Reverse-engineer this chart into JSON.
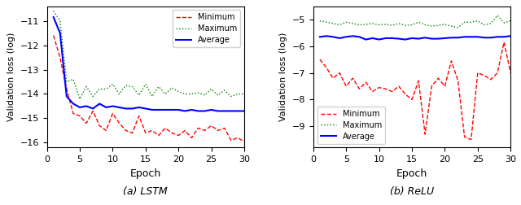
{
  "lstm": {
    "epochs": [
      1,
      2,
      3,
      4,
      5,
      6,
      7,
      8,
      9,
      10,
      11,
      12,
      13,
      14,
      15,
      16,
      17,
      18,
      19,
      20,
      21,
      22,
      23,
      24,
      25,
      26,
      27,
      28,
      29,
      30
    ],
    "minimum": [
      -11.6,
      -12.5,
      -13.8,
      -14.8,
      -14.9,
      -15.2,
      -14.7,
      -15.3,
      -15.5,
      -14.8,
      -15.2,
      -15.5,
      -15.6,
      -14.9,
      -15.6,
      -15.5,
      -15.7,
      -15.4,
      -15.6,
      -15.7,
      -15.5,
      -15.8,
      -15.4,
      -15.5,
      -15.3,
      -15.5,
      -15.4,
      -15.9,
      -15.8,
      -15.95
    ],
    "maximum": [
      -10.6,
      -11.0,
      -13.5,
      -13.4,
      -14.2,
      -13.7,
      -14.1,
      -13.8,
      -13.8,
      -13.6,
      -14.0,
      -13.65,
      -13.7,
      -14.05,
      -13.6,
      -14.1,
      -13.7,
      -14.0,
      -13.75,
      -13.9,
      -14.0,
      -14.0,
      -13.95,
      -14.05,
      -13.8,
      -14.05,
      -13.85,
      -14.1,
      -14.0,
      -14.0
    ],
    "average": [
      -10.85,
      -11.5,
      -14.1,
      -14.4,
      -14.55,
      -14.5,
      -14.6,
      -14.4,
      -14.55,
      -14.5,
      -14.55,
      -14.6,
      -14.6,
      -14.55,
      -14.6,
      -14.65,
      -14.65,
      -14.65,
      -14.65,
      -14.65,
      -14.7,
      -14.65,
      -14.7,
      -14.7,
      -14.65,
      -14.7,
      -14.7,
      -14.7,
      -14.7,
      -14.7
    ],
    "ylim": [
      -16.2,
      -10.4
    ],
    "yticks": [
      -16,
      -15,
      -14,
      -13,
      -12,
      -11
    ],
    "xlabel": "Epoch",
    "ylabel": "Validation loss (log)",
    "caption": "(a) LSTM"
  },
  "relu": {
    "epochs": [
      1,
      2,
      3,
      4,
      5,
      6,
      7,
      8,
      9,
      10,
      11,
      12,
      13,
      14,
      15,
      16,
      17,
      18,
      19,
      20,
      21,
      22,
      23,
      24,
      25,
      26,
      27,
      28,
      29,
      30
    ],
    "minimum": [
      -6.5,
      -6.8,
      -7.2,
      -7.0,
      -7.5,
      -7.2,
      -7.6,
      -7.35,
      -7.7,
      -7.55,
      -7.6,
      -7.7,
      -7.5,
      -7.8,
      -8.0,
      -7.3,
      -9.3,
      -7.5,
      -7.2,
      -7.5,
      -6.55,
      -7.3,
      -9.4,
      -9.5,
      -7.0,
      -7.1,
      -7.25,
      -7.0,
      -5.85,
      -7.0
    ],
    "maximum": [
      -5.05,
      -5.1,
      -5.15,
      -5.2,
      -5.1,
      -5.15,
      -5.2,
      -5.18,
      -5.15,
      -5.2,
      -5.18,
      -5.22,
      -5.15,
      -5.22,
      -5.2,
      -5.1,
      -5.2,
      -5.25,
      -5.22,
      -5.18,
      -5.25,
      -5.3,
      -5.1,
      -5.1,
      -5.05,
      -5.2,
      -5.15,
      -4.85,
      -5.12,
      -5.05
    ],
    "average": [
      -5.65,
      -5.62,
      -5.65,
      -5.7,
      -5.65,
      -5.62,
      -5.65,
      -5.75,
      -5.7,
      -5.75,
      -5.7,
      -5.7,
      -5.72,
      -5.75,
      -5.7,
      -5.72,
      -5.68,
      -5.72,
      -5.72,
      -5.7,
      -5.68,
      -5.68,
      -5.65,
      -5.65,
      -5.65,
      -5.68,
      -5.68,
      -5.65,
      -5.65,
      -5.62
    ],
    "ylim": [
      -9.8,
      -4.5
    ],
    "yticks": [
      -9,
      -8,
      -7,
      -6,
      -5
    ],
    "xlabel": "Epoch",
    "ylabel": "Validation loss (log)",
    "caption": "(b) ReLU"
  },
  "legend": {
    "minimum_label": "Minimum",
    "maximum_label": "Maximum",
    "average_label": "Average",
    "min_color": "#ff0000",
    "max_color": "#008000",
    "avg_color": "#0000ff"
  },
  "legend_locs": [
    "upper right",
    "lower left"
  ]
}
